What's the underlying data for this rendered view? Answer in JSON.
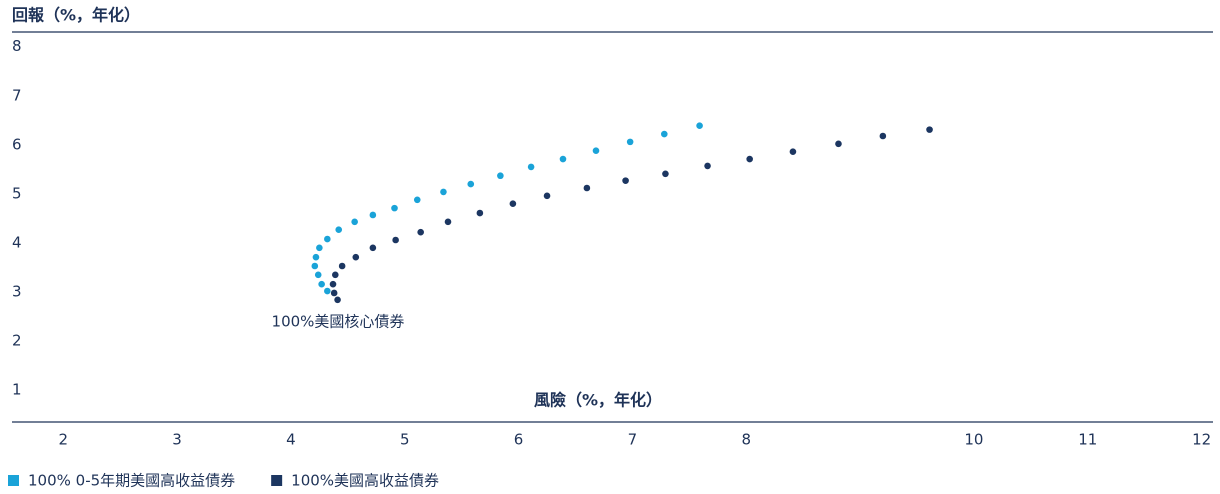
{
  "chart_data": {
    "type": "scatter",
    "y_label": "回報（%，年化）",
    "x_label": "風險（%，年化）",
    "annotation": "100%美國核心債券",
    "xlim": [
      1.55,
      12.1
    ],
    "xticks": [
      2,
      3,
      4,
      5,
      6,
      7,
      8,
      10,
      11,
      12
    ],
    "ylim": [
      0.35,
      8.3
    ],
    "yticks": [
      1,
      2,
      3,
      4,
      5,
      6,
      7,
      8
    ],
    "series": [
      {
        "name": "100% 0-5年期美國高收益債券",
        "color": "#1aa3d8",
        "x": [
          4.32,
          4.27,
          4.24,
          4.21,
          4.22,
          4.25,
          4.32,
          4.42,
          4.56,
          4.72,
          4.91,
          5.11,
          5.34,
          5.58,
          5.84,
          6.11,
          6.39,
          6.68,
          6.98,
          7.28,
          7.59
        ],
        "values": [
          3.02,
          3.16,
          3.35,
          3.53,
          3.71,
          3.9,
          4.08,
          4.27,
          4.43,
          4.57,
          4.71,
          4.88,
          5.04,
          5.2,
          5.37,
          5.55,
          5.71,
          5.88,
          6.06,
          6.22,
          6.39
        ]
      },
      {
        "name": "100%美國高收益債券",
        "color": "#1c3661",
        "x": [
          4.41,
          4.38,
          4.37,
          4.39,
          4.45,
          4.57,
          4.72,
          4.92,
          5.14,
          5.38,
          5.66,
          5.95,
          6.25,
          6.6,
          6.94,
          7.29,
          7.66,
          8.03,
          8.41,
          8.81,
          9.2,
          9.61
        ],
        "values": [
          2.84,
          2.98,
          3.16,
          3.35,
          3.53,
          3.71,
          3.9,
          4.06,
          4.22,
          4.43,
          4.61,
          4.8,
          4.96,
          5.12,
          5.27,
          5.41,
          5.57,
          5.71,
          5.86,
          6.02,
          6.18,
          6.31
        ]
      }
    ]
  }
}
